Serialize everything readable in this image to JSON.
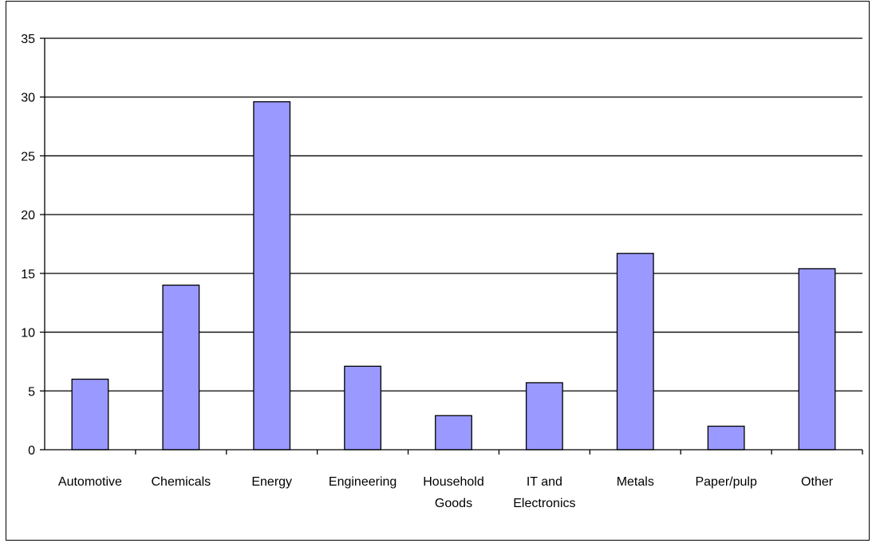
{
  "chart_data": {
    "type": "bar",
    "title": "",
    "xlabel": "",
    "ylabel": "",
    "categories": [
      [
        "Automotive"
      ],
      [
        "Chemicals"
      ],
      [
        "Energy"
      ],
      [
        "Engineering"
      ],
      [
        "Household",
        "Goods"
      ],
      [
        "IT and",
        "Electronics"
      ],
      [
        "Metals"
      ],
      [
        "Paper/pulp"
      ],
      [
        "Other"
      ]
    ],
    "values": [
      6.0,
      14.0,
      29.6,
      7.1,
      2.9,
      5.7,
      16.7,
      2.0,
      15.4
    ],
    "ylim": [
      0,
      35
    ],
    "yticks": [
      "0",
      "5",
      "10",
      "15",
      "20",
      "25",
      "30",
      "35"
    ],
    "grid": true,
    "legend": "none",
    "colors": {
      "bar_fill": "#9999ff",
      "bar_stroke": "#000000",
      "grid": "#000000",
      "axis": "#000000"
    }
  }
}
